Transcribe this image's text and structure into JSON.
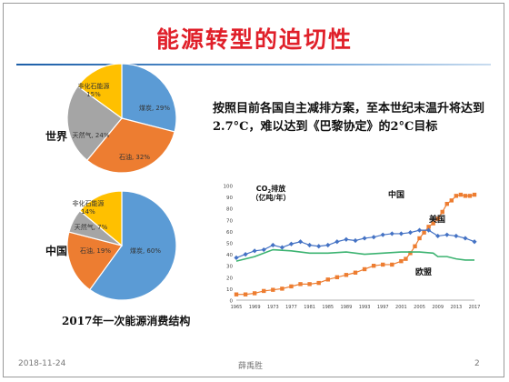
{
  "slide": {
    "title": "能源转型的迫切性",
    "note": "按照目前各国自主减排方案，至本世纪末温升将达到2.7°C，难以达到《巴黎协定》的2°C目标",
    "pie_caption": "2017年一次能源消费结构",
    "footer_date": "2018-11-24",
    "footer_author": "薛禹胜",
    "footer_page": "2"
  },
  "colors": {
    "coal": "#5b9bd5",
    "oil": "#ed7d31",
    "gas": "#a5a5a5",
    "nonfossil": "#ffc000",
    "china": "#ed7d31",
    "usa": "#4472c4",
    "eu": "#3cb371"
  },
  "chart_data": [
    {
      "type": "pie",
      "region_label": "世界",
      "slices": [
        {
          "label": "煤炭, 29%",
          "value": 29,
          "color": "#5b9bd5"
        },
        {
          "label": "石油, 32%",
          "value": 32,
          "color": "#ed7d31"
        },
        {
          "label": "天然气, 24%",
          "value": 24,
          "color": "#a5a5a5"
        },
        {
          "label": "非化石能源, 15%",
          "value": 15,
          "color": "#ffc000"
        }
      ]
    },
    {
      "type": "pie",
      "region_label": "中国",
      "slices": [
        {
          "label": "煤炭, 60%",
          "value": 60,
          "color": "#5b9bd5"
        },
        {
          "label": "石油, 19%",
          "value": 19,
          "color": "#ed7d31"
        },
        {
          "label": "天然气, 7%",
          "value": 7,
          "color": "#a5a5a5"
        },
        {
          "label": "非化石能源, 14%",
          "value": 14,
          "color": "#ffc000"
        }
      ]
    },
    {
      "type": "line",
      "ylabel": "CO2排放（亿吨/年）",
      "ylim": [
        0,
        100
      ],
      "yticks": [
        0,
        10,
        20,
        30,
        40,
        50,
        60,
        70,
        80,
        90,
        100
      ],
      "xlim": [
        1965,
        2017
      ],
      "xticks": [
        1965,
        1969,
        1973,
        1977,
        1981,
        1985,
        1989,
        1993,
        1997,
        2001,
        2005,
        2009,
        2013,
        2017
      ],
      "series": [
        {
          "name": "中国",
          "color": "#ed7d31",
          "marker": "square",
          "x": [
            1965,
            1967,
            1969,
            1971,
            1973,
            1975,
            1977,
            1979,
            1981,
            1983,
            1985,
            1987,
            1989,
            1991,
            1993,
            1995,
            1997,
            1999,
            2001,
            2002,
            2003,
            2004,
            2005,
            2006,
            2007,
            2008,
            2009,
            2010,
            2011,
            2012,
            2013,
            2014,
            2015,
            2016,
            2017
          ],
          "y": [
            5,
            5,
            6,
            8,
            9,
            10,
            12,
            14,
            14,
            15,
            18,
            20,
            22,
            24,
            27,
            30,
            31,
            31,
            34,
            36,
            41,
            47,
            54,
            59,
            64,
            67,
            71,
            77,
            84,
            87,
            91,
            92,
            91,
            91,
            92
          ]
        },
        {
          "name": "美国",
          "color": "#4472c4",
          "marker": "diamond",
          "x": [
            1965,
            1967,
            1969,
            1971,
            1973,
            1975,
            1977,
            1979,
            1981,
            1983,
            1985,
            1987,
            1989,
            1991,
            1993,
            1995,
            1997,
            1999,
            2001,
            2003,
            2005,
            2007,
            2009,
            2011,
            2013,
            2015,
            2017
          ],
          "y": [
            37,
            40,
            43,
            44,
            48,
            46,
            49,
            51,
            48,
            47,
            48,
            51,
            53,
            52,
            54,
            55,
            57,
            58,
            58,
            59,
            61,
            61,
            56,
            57,
            56,
            54,
            51
          ]
        },
        {
          "name": "欧盟",
          "color": "#3cb371",
          "marker": "none",
          "x": [
            1965,
            1969,
            1973,
            1977,
            1981,
            1985,
            1989,
            1993,
            1997,
            2001,
            2005,
            2008,
            2009,
            2011,
            2013,
            2015,
            2017
          ],
          "y": [
            34,
            38,
            44,
            43,
            41,
            41,
            42,
            40,
            41,
            42,
            42,
            41,
            38,
            38,
            36,
            35,
            35
          ]
        }
      ]
    }
  ]
}
